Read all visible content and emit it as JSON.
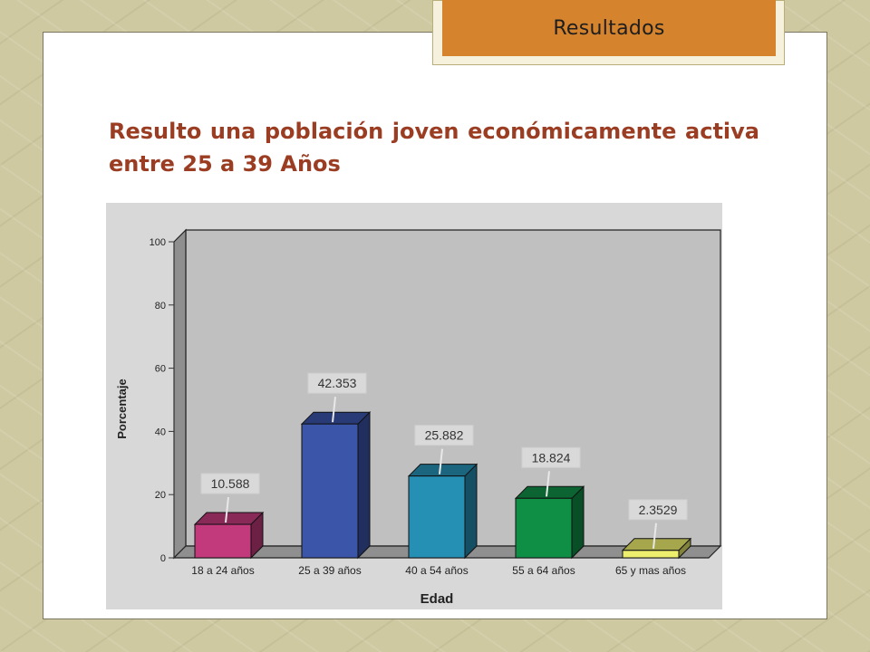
{
  "header": {
    "tab_label": "Resultados"
  },
  "slide": {
    "headline": "Resulto una población joven económicamente activa entre 25 a 39 Años"
  },
  "chart_data": {
    "type": "bar",
    "categories": [
      "18 a 24 años",
      "25 a 39 años",
      "40 a 54 años",
      "55 a 64 años",
      "65 y mas años"
    ],
    "values": [
      10.588,
      42.353,
      25.882,
      18.824,
      2.3529
    ],
    "value_labels": [
      "10.588",
      "42.353",
      "25.882",
      "18.824",
      "2.3529"
    ],
    "colors": [
      "#c23a7c",
      "#3b55a9",
      "#2690b4",
      "#0f8f46",
      "#eded6e"
    ],
    "title": "",
    "xlabel": "Edad",
    "ylabel": "Porcentaje",
    "ylim": [
      0,
      100
    ],
    "yticks": [
      0,
      20,
      40,
      60,
      80,
      100
    ],
    "plot_background": "#c0c0c0",
    "grid": false,
    "style": "3d"
  }
}
